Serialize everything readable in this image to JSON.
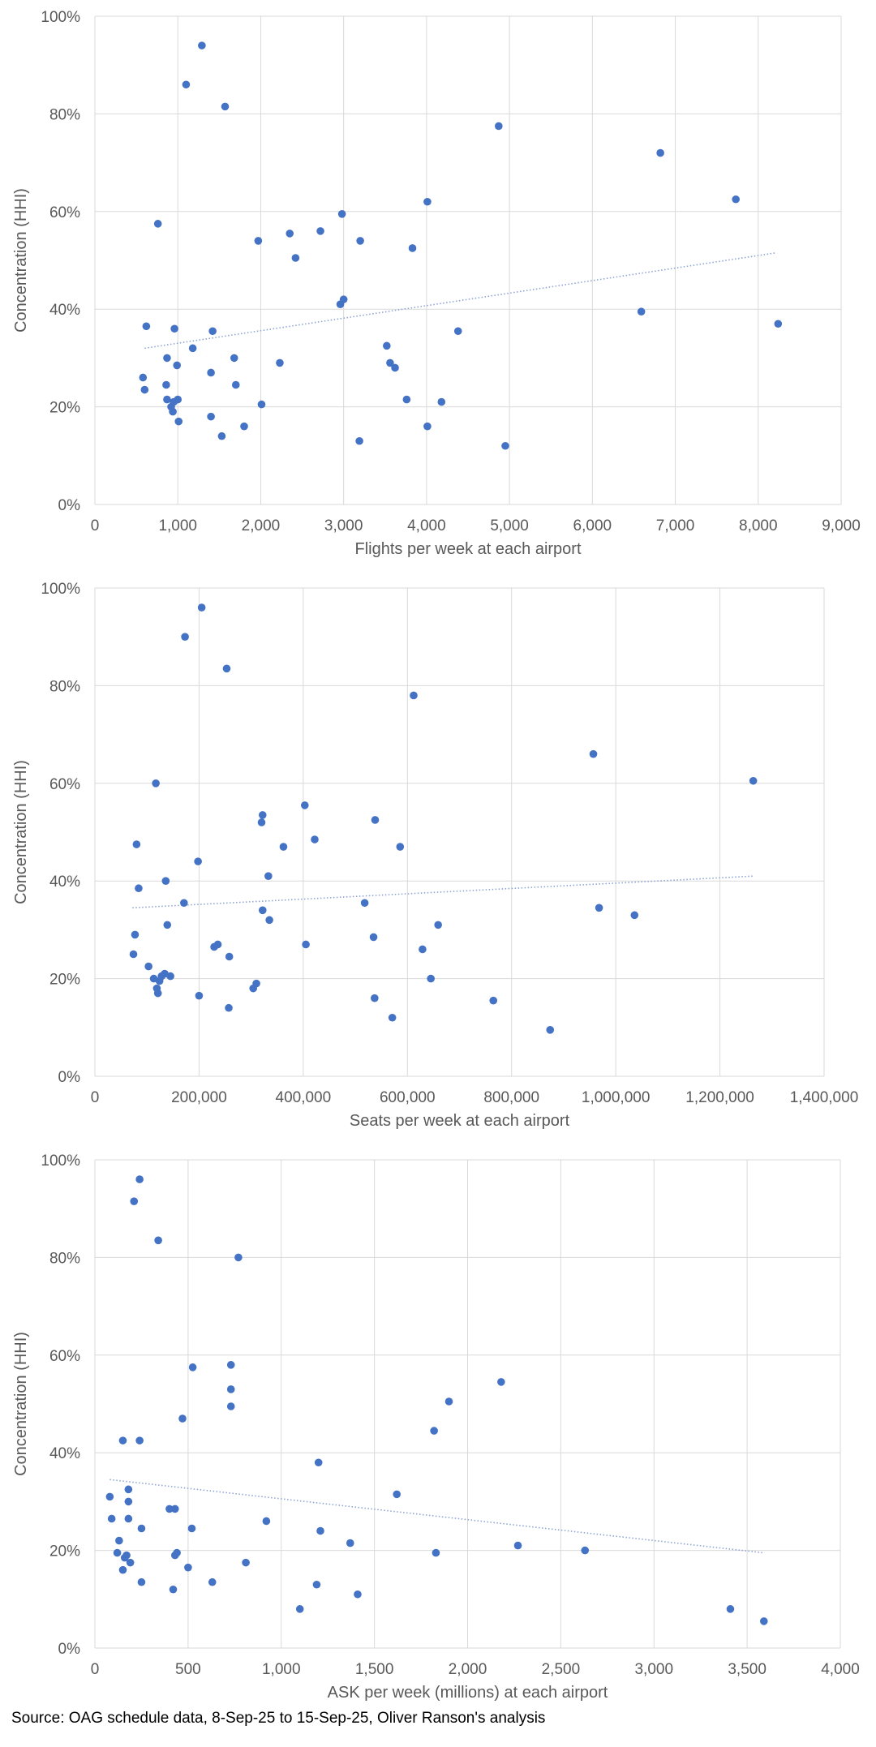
{
  "chart_data": [
    {
      "type": "scatter",
      "xlabel": "Flights per week at each airport",
      "ylabel": "Concentration (HHI)",
      "xlim": [
        0,
        9000
      ],
      "ylim": [
        0,
        1
      ],
      "x_ticks": [
        0,
        1000,
        2000,
        3000,
        4000,
        5000,
        6000,
        7000,
        8000,
        9000
      ],
      "x_tick_labels": [
        "0",
        "1,000",
        "2,000",
        "3,000",
        "4,000",
        "5,000",
        "6,000",
        "7,000",
        "8,000",
        "9,000"
      ],
      "y_ticks": [
        0,
        0.2,
        0.4,
        0.6,
        0.8,
        1.0
      ],
      "y_tick_labels": [
        "0%",
        "20%",
        "40%",
        "60%",
        "80%",
        "100%"
      ],
      "grid": true,
      "trendline": {
        "type": "linear",
        "x": [
          600,
          8200
        ],
        "y": [
          0.32,
          0.515
        ],
        "style": "dotted"
      },
      "points": [
        [
          1290,
          0.94
        ],
        [
          1100,
          0.86
        ],
        [
          1570,
          0.815
        ],
        [
          4870,
          0.775
        ],
        [
          6820,
          0.72
        ],
        [
          7730,
          0.625
        ],
        [
          4010,
          0.62
        ],
        [
          2980,
          0.595
        ],
        [
          760,
          0.575
        ],
        [
          2720,
          0.56
        ],
        [
          2350,
          0.555
        ],
        [
          1970,
          0.54
        ],
        [
          3200,
          0.54
        ],
        [
          3830,
          0.525
        ],
        [
          2420,
          0.505
        ],
        [
          3000,
          0.42
        ],
        [
          2960,
          0.41
        ],
        [
          6590,
          0.395
        ],
        [
          8240,
          0.37
        ],
        [
          620,
          0.365
        ],
        [
          960,
          0.36
        ],
        [
          1420,
          0.355
        ],
        [
          4380,
          0.355
        ],
        [
          3520,
          0.325
        ],
        [
          1180,
          0.32
        ],
        [
          870,
          0.3
        ],
        [
          1680,
          0.3
        ],
        [
          2230,
          0.29
        ],
        [
          3560,
          0.29
        ],
        [
          3620,
          0.28
        ],
        [
          990,
          0.285
        ],
        [
          1400,
          0.27
        ],
        [
          580,
          0.26
        ],
        [
          860,
          0.245
        ],
        [
          1700,
          0.245
        ],
        [
          600,
          0.235
        ],
        [
          870,
          0.215
        ],
        [
          1000,
          0.215
        ],
        [
          950,
          0.21
        ],
        [
          3760,
          0.215
        ],
        [
          4180,
          0.21
        ],
        [
          920,
          0.2
        ],
        [
          2010,
          0.205
        ],
        [
          940,
          0.19
        ],
        [
          1400,
          0.18
        ],
        [
          1010,
          0.17
        ],
        [
          1800,
          0.16
        ],
        [
          4010,
          0.16
        ],
        [
          1530,
          0.14
        ],
        [
          3190,
          0.13
        ],
        [
          4950,
          0.12
        ]
      ]
    },
    {
      "type": "scatter",
      "xlabel": "Seats per week at each airport",
      "ylabel": "Concentration (HHI)",
      "xlim": [
        0,
        1400000
      ],
      "ylim": [
        0,
        1
      ],
      "x_ticks": [
        0,
        200000,
        400000,
        600000,
        800000,
        1000000,
        1200000,
        1400000
      ],
      "x_tick_labels": [
        "0",
        "200,000",
        "400,000",
        "600,000",
        "800,000",
        "1,000,000",
        "1,200,000",
        "1,400,000"
      ],
      "y_ticks": [
        0,
        0.2,
        0.4,
        0.6,
        0.8,
        1.0
      ],
      "y_tick_labels": [
        "0%",
        "20%",
        "40%",
        "60%",
        "80%",
        "100%"
      ],
      "grid": true,
      "trendline": {
        "type": "linear",
        "x": [
          72000,
          1265000
        ],
        "y": [
          0.345,
          0.41
        ],
        "style": "dotted"
      },
      "points": [
        [
          205000,
          0.96
        ],
        [
          173000,
          0.9
        ],
        [
          253000,
          0.835
        ],
        [
          612000,
          0.78
        ],
        [
          957000,
          0.66
        ],
        [
          1264000,
          0.605
        ],
        [
          117000,
          0.6
        ],
        [
          403000,
          0.555
        ],
        [
          322000,
          0.535
        ],
        [
          538000,
          0.525
        ],
        [
          320000,
          0.52
        ],
        [
          422000,
          0.485
        ],
        [
          80000,
          0.475
        ],
        [
          362000,
          0.47
        ],
        [
          586000,
          0.47
        ],
        [
          198000,
          0.44
        ],
        [
          333000,
          0.41
        ],
        [
          136000,
          0.4
        ],
        [
          84000,
          0.385
        ],
        [
          171000,
          0.355
        ],
        [
          518000,
          0.355
        ],
        [
          968000,
          0.345
        ],
        [
          322000,
          0.34
        ],
        [
          1036000,
          0.33
        ],
        [
          335000,
          0.32
        ],
        [
          659000,
          0.31
        ],
        [
          139000,
          0.31
        ],
        [
          77000,
          0.29
        ],
        [
          535000,
          0.285
        ],
        [
          405000,
          0.27
        ],
        [
          236000,
          0.27
        ],
        [
          229000,
          0.265
        ],
        [
          629000,
          0.26
        ],
        [
          74000,
          0.25
        ],
        [
          258000,
          0.245
        ],
        [
          103000,
          0.225
        ],
        [
          134000,
          0.21
        ],
        [
          145000,
          0.205
        ],
        [
          128000,
          0.205
        ],
        [
          113000,
          0.2
        ],
        [
          124000,
          0.195
        ],
        [
          645000,
          0.2
        ],
        [
          310000,
          0.19
        ],
        [
          304000,
          0.18
        ],
        [
          119000,
          0.18
        ],
        [
          121000,
          0.17
        ],
        [
          200000,
          0.165
        ],
        [
          537000,
          0.16
        ],
        [
          765000,
          0.155
        ],
        [
          257000,
          0.14
        ],
        [
          571000,
          0.12
        ],
        [
          874000,
          0.095
        ]
      ]
    },
    {
      "type": "scatter",
      "xlabel": "ASK per week (millions) at each airport",
      "ylabel": "Concentration (HHI)",
      "xlim": [
        0,
        4000
      ],
      "ylim": [
        0,
        1
      ],
      "x_ticks": [
        0,
        500,
        1000,
        1500,
        2000,
        2500,
        3000,
        3500,
        4000
      ],
      "x_tick_labels": [
        "0",
        "500",
        "1,000",
        "1,500",
        "2,000",
        "2,500",
        "3,000",
        "3,500",
        "4,000"
      ],
      "y_ticks": [
        0,
        0.2,
        0.4,
        0.6,
        0.8,
        1.0
      ],
      "y_tick_labels": [
        "0%",
        "20%",
        "40%",
        "60%",
        "80%",
        "100%"
      ],
      "grid": true,
      "trendline": {
        "type": "linear",
        "x": [
          80,
          3590
        ],
        "y": [
          0.345,
          0.195
        ],
        "style": "dotted"
      },
      "points": [
        [
          240,
          0.96
        ],
        [
          210,
          0.915
        ],
        [
          340,
          0.835
        ],
        [
          770,
          0.8
        ],
        [
          525,
          0.575
        ],
        [
          730,
          0.58
        ],
        [
          2180,
          0.545
        ],
        [
          730,
          0.53
        ],
        [
          1900,
          0.505
        ],
        [
          730,
          0.495
        ],
        [
          470,
          0.47
        ],
        [
          1820,
          0.445
        ],
        [
          150,
          0.425
        ],
        [
          240,
          0.425
        ],
        [
          1200,
          0.38
        ],
        [
          180,
          0.325
        ],
        [
          1620,
          0.315
        ],
        [
          80,
          0.31
        ],
        [
          180,
          0.3
        ],
        [
          400,
          0.285
        ],
        [
          430,
          0.285
        ],
        [
          90,
          0.265
        ],
        [
          180,
          0.265
        ],
        [
          920,
          0.26
        ],
        [
          520,
          0.245
        ],
        [
          250,
          0.245
        ],
        [
          1210,
          0.24
        ],
        [
          130,
          0.22
        ],
        [
          1370,
          0.215
        ],
        [
          2270,
          0.21
        ],
        [
          120,
          0.195
        ],
        [
          170,
          0.19
        ],
        [
          440,
          0.195
        ],
        [
          2630,
          0.2
        ],
        [
          1830,
          0.195
        ],
        [
          430,
          0.19
        ],
        [
          160,
          0.185
        ],
        [
          190,
          0.175
        ],
        [
          810,
          0.175
        ],
        [
          500,
          0.165
        ],
        [
          150,
          0.16
        ],
        [
          250,
          0.135
        ],
        [
          630,
          0.135
        ],
        [
          1190,
          0.13
        ],
        [
          420,
          0.12
        ],
        [
          1410,
          0.11
        ],
        [
          3410,
          0.08
        ],
        [
          1100,
          0.08
        ],
        [
          3590,
          0.055
        ]
      ]
    }
  ],
  "source": "Source: OAG schedule data, 8-Sep-25 to 15-Sep-25, Oliver Ranson's analysis",
  "colors": {
    "marker": "#4472C4",
    "grid": "#D9D9D9",
    "axis_text": "#595959",
    "trendline": "#8FA3D4"
  }
}
